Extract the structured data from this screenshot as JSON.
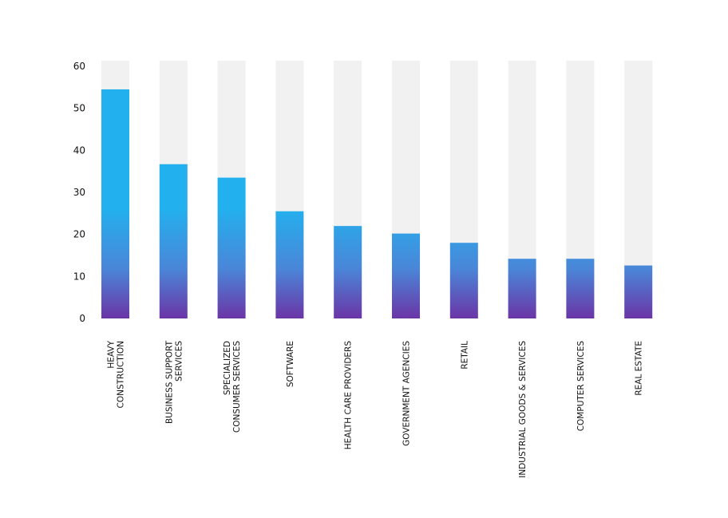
{
  "chart_data": {
    "type": "bar",
    "stacked_background": true,
    "categories": [
      [
        "HEAVY",
        "CONSTRUCTION"
      ],
      [
        "BUSINESS SUPPORT",
        "SERVICES"
      ],
      [
        "SPECIALIZED",
        "CONSUMER SERVICES"
      ],
      [
        "SOFTWARE"
      ],
      [
        "HEALTH CARE PROVIDERS"
      ],
      [
        "GOVERNMENT AGENCIES"
      ],
      [
        "RETAIL"
      ],
      [
        "INDUSTRIAL GOODS & SERVICES"
      ],
      [
        "COMPUTER SERVICES"
      ],
      [
        "REAL ESTATE"
      ]
    ],
    "values": [
      54.5,
      36.7,
      33.5,
      25.5,
      22,
      20.2,
      18,
      14.2,
      14.2,
      12.6
    ],
    "ylim": [
      0,
      60
    ],
    "yticks": [
      0,
      10,
      20,
      30,
      40,
      50,
      60
    ],
    "grid": false,
    "legend": "none",
    "colors": {
      "bar_top": "#22b1ee",
      "bar_bottom": "#6b35a6",
      "track": "#f1f1f1"
    }
  }
}
